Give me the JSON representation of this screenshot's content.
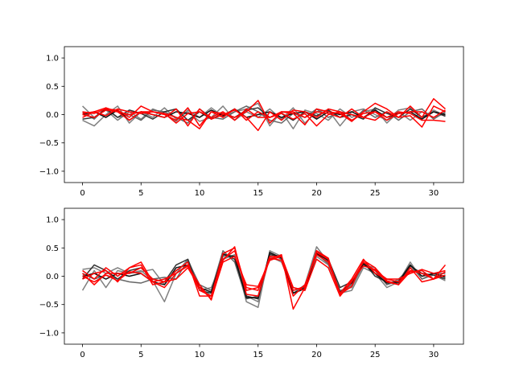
{
  "chart_data": [
    {
      "type": "line",
      "xlim": [
        -1.55,
        32.55
      ],
      "ylim": [
        -1.2,
        1.2
      ],
      "xticks": [
        0,
        5,
        10,
        15,
        20,
        25,
        30
      ],
      "xtick_labels": [
        "0",
        "5",
        "10",
        "15",
        "20",
        "25",
        "30"
      ],
      "yticks": [
        1.0,
        0.5,
        0.0,
        -0.5,
        -1.0
      ],
      "ytick_labels": [
        "1.0",
        "0.5",
        "0.0",
        "−0.5",
        "−1.0"
      ],
      "grid": false,
      "legend": "none",
      "x": [
        0,
        1,
        2,
        3,
        4,
        5,
        6,
        7,
        8,
        9,
        10,
        11,
        12,
        13,
        14,
        15,
        16,
        17,
        18,
        19,
        20,
        21,
        22,
        23,
        24,
        25,
        26,
        27,
        28,
        29,
        30,
        31
      ],
      "series": [
        {
          "color": "#808080",
          "values": [
            0.15,
            -0.05,
            0.08,
            -0.1,
            0.05,
            -0.08,
            0.1,
            0.02,
            -0.12,
            0.08,
            -0.05,
            0.12,
            -0.03,
            0.05,
            0.1,
            0.2,
            -0.2,
            0.05,
            -0.25,
            0.08,
            0.02,
            -0.1,
            0.1,
            -0.05,
            0.05,
            0.1,
            -0.15,
            0.05,
            -0.1,
            0.05,
            -0.05,
            0.02
          ]
        },
        {
          "color": "#808080",
          "values": [
            -0.1,
            -0.2,
            0.0,
            0.15,
            -0.15,
            0.05,
            -0.05,
            0.12,
            -0.08,
            0.05,
            -0.12,
            -0.05,
            0.15,
            -0.1,
            0.05,
            -0.05,
            0.1,
            -0.08,
            0.12,
            -0.15,
            0.05,
            0.08,
            -0.2,
            0.05,
            0.1,
            0.0,
            -0.1,
            0.08,
            0.12,
            -0.05,
            0.08,
            -0.02
          ]
        },
        {
          "color": "#666666",
          "values": [
            0.05,
            -0.08,
            0.12,
            -0.05,
            0.0,
            -0.1,
            0.08,
            0.05,
            -0.05,
            -0.15,
            0.1,
            -0.05,
            -0.08,
            0.05,
            0.15,
            0.05,
            -0.1,
            -0.15,
            0.02,
            -0.05,
            0.1,
            -0.05,
            0.05,
            -0.12,
            0.08,
            -0.05,
            0.05,
            -0.1,
            0.05,
            0.1,
            -0.08,
            0.05
          ]
        },
        {
          "color": "#333333",
          "values": [
            -0.08,
            -0.05,
            0.1,
            -0.05,
            0.08,
            0.02,
            -0.08,
            0.05,
            0.1,
            -0.1,
            0.05,
            -0.08,
            0.02,
            -0.05,
            0.08,
            0.12,
            -0.05,
            0.02,
            -0.1,
            0.05,
            -0.02,
            0.08,
            -0.05,
            0.0,
            -0.08,
            0.12,
            0.02,
            -0.05,
            0.1,
            -0.05,
            0.05,
            -0.03
          ]
        },
        {
          "color": "#111111",
          "values": [
            0.0,
            0.05,
            -0.05,
            0.08,
            -0.1,
            0.05,
            0.0,
            -0.05,
            0.05,
            0.02,
            -0.05,
            0.08,
            -0.02,
            0.1,
            -0.05,
            0.0,
            0.05,
            -0.05,
            0.02,
            0.05,
            -0.08,
            0.05,
            0.0,
            0.05,
            -0.05,
            0.08,
            -0.05,
            0.02,
            0.05,
            -0.08,
            0.05,
            0.0
          ]
        },
        {
          "color": "#ff0000",
          "values": [
            0.05,
            0.02,
            0.1,
            0.08,
            -0.05,
            0.15,
            0.05,
            0.0,
            -0.1,
            0.12,
            -0.2,
            0.05,
            0.02,
            -0.05,
            0.05,
            0.25,
            -0.15,
            0.05,
            0.02,
            -0.18,
            0.1,
            0.05,
            0.02,
            -0.12,
            0.05,
            0.2,
            0.1,
            -0.05,
            0.15,
            -0.05,
            0.28,
            0.1
          ]
        },
        {
          "color": "#ff0000",
          "values": [
            -0.05,
            0.05,
            0.12,
            0.05,
            0.0,
            0.05,
            0.0,
            -0.05,
            0.1,
            -0.2,
            0.1,
            -0.08,
            0.0,
            0.08,
            -0.05,
            -0.28,
            0.05,
            -0.1,
            0.08,
            0.05,
            -0.05,
            0.1,
            0.05,
            0.0,
            -0.05,
            0.05,
            -0.1,
            0.02,
            0.05,
            0.05,
            -0.05,
            0.08
          ]
        },
        {
          "color": "#ff0000",
          "values": [
            0.0,
            -0.05,
            0.08,
            0.05,
            -0.1,
            0.05,
            0.05,
            0.02,
            -0.05,
            -0.1,
            -0.25,
            0.05,
            -0.05,
            0.1,
            -0.1,
            0.05,
            -0.05,
            0.02,
            -0.08,
            0.02,
            -0.2,
            0.0,
            0.05,
            -0.1,
            0.02,
            0.05,
            -0.05,
            0.05,
            0.02,
            -0.1,
            -0.1,
            -0.12
          ]
        },
        {
          "color": "#ff0000",
          "values": [
            0.02,
            0.05,
            -0.02,
            0.1,
            0.05,
            0.02,
            0.05,
            0.02,
            -0.15,
            0.02,
            0.05,
            -0.05,
            0.05,
            -0.1,
            0.1,
            -0.05,
            -0.05,
            0.05,
            0.05,
            -0.05,
            0.05,
            0.02,
            -0.05,
            0.1,
            -0.05,
            -0.1,
            0.05,
            -0.05,
            -0.02,
            -0.22,
            0.15,
            0.05
          ]
        }
      ]
    },
    {
      "type": "line",
      "xlim": [
        -1.55,
        32.55
      ],
      "ylim": [
        -1.2,
        1.2
      ],
      "xticks": [
        0,
        5,
        10,
        15,
        20,
        25,
        30
      ],
      "xtick_labels": [
        "0",
        "5",
        "10",
        "15",
        "20",
        "25",
        "30"
      ],
      "yticks": [
        1.0,
        0.5,
        0.0,
        -0.5,
        -1.0
      ],
      "ytick_labels": [
        "1.0",
        "0.5",
        "0.0",
        "−0.5",
        "−1.0"
      ],
      "grid": false,
      "legend": "none",
      "x": [
        0,
        1,
        2,
        3,
        4,
        5,
        6,
        7,
        8,
        9,
        10,
        11,
        12,
        13,
        14,
        15,
        16,
        17,
        18,
        19,
        20,
        21,
        22,
        23,
        24,
        25,
        26,
        27,
        28,
        29,
        30,
        31
      ],
      "series": [
        {
          "color": "#808080",
          "values": [
            -0.25,
            0.1,
            -0.2,
            0.1,
            0.05,
            0.1,
            -0.08,
            -0.45,
            0.05,
            0.3,
            -0.2,
            -0.35,
            0.35,
            0.35,
            -0.45,
            -0.55,
            0.45,
            0.35,
            -0.3,
            -0.15,
            0.52,
            0.25,
            -0.3,
            -0.25,
            0.15,
            0.05,
            -0.2,
            -0.1,
            0.25,
            -0.05,
            0.02,
            -0.08
          ]
        },
        {
          "color": "#808080",
          "values": [
            0.12,
            0.15,
            0.05,
            0.15,
            0.05,
            0.08,
            0.12,
            -0.15,
            0.1,
            0.25,
            -0.25,
            -0.2,
            0.3,
            0.38,
            -0.35,
            -0.45,
            0.35,
            0.25,
            -0.25,
            -0.2,
            0.35,
            0.2,
            -0.25,
            -0.2,
            0.2,
            0.15,
            -0.15,
            -0.05,
            0.15,
            0.0,
            0.05,
            0.0
          ]
        },
        {
          "color": "#666666",
          "values": [
            0.05,
            -0.05,
            0.02,
            -0.05,
            -0.1,
            -0.12,
            -0.05,
            -0.02,
            -0.05,
            0.28,
            -0.15,
            -0.25,
            0.45,
            0.25,
            -0.4,
            -0.35,
            0.4,
            0.3,
            -0.2,
            -0.25,
            0.4,
            0.22,
            -0.3,
            -0.15,
            0.2,
            0.1,
            -0.15,
            -0.08,
            0.2,
            -0.05,
            0.05,
            0.05
          ]
        },
        {
          "color": "#333333",
          "values": [
            -0.05,
            0.2,
            0.1,
            -0.05,
            0.1,
            0.15,
            -0.05,
            -0.1,
            0.2,
            0.3,
            -0.25,
            -0.3,
            0.4,
            0.3,
            -0.35,
            -0.4,
            0.38,
            0.35,
            -0.3,
            -0.2,
            0.45,
            0.3,
            -0.2,
            -0.1,
            0.25,
            0.0,
            -0.1,
            -0.12,
            0.18,
            0.05,
            0.02,
            -0.05
          ]
        },
        {
          "color": "#111111",
          "values": [
            0.0,
            0.05,
            -0.05,
            0.05,
            0.0,
            0.05,
            -0.1,
            -0.15,
            0.15,
            0.2,
            -0.2,
            -0.28,
            0.38,
            0.35,
            -0.38,
            -0.38,
            0.42,
            0.32,
            -0.3,
            -0.22,
            0.4,
            0.28,
            -0.28,
            -0.12,
            0.22,
            0.05,
            -0.12,
            -0.1,
            0.2,
            0.0,
            0.05,
            -0.02
          ]
        },
        {
          "color": "#ff0000",
          "values": [
            0.1,
            -0.05,
            0.15,
            0.0,
            0.15,
            0.25,
            -0.1,
            -0.05,
            0.05,
            0.2,
            -0.25,
            -0.35,
            0.3,
            0.45,
            -0.2,
            -0.25,
            0.35,
            0.35,
            -0.25,
            -0.18,
            0.42,
            0.3,
            -0.3,
            -0.05,
            0.3,
            0.05,
            -0.05,
            -0.1,
            0.1,
            0.05,
            -0.05,
            0.2
          ]
        },
        {
          "color": "#ff0000",
          "values": [
            -0.05,
            0.05,
            0.1,
            -0.1,
            0.15,
            0.2,
            -0.15,
            -0.1,
            0.1,
            0.25,
            -0.35,
            -0.35,
            0.4,
            0.5,
            -0.25,
            -0.2,
            0.3,
            0.38,
            -0.58,
            -0.2,
            0.45,
            0.32,
            -0.35,
            -0.1,
            0.25,
            0.1,
            -0.05,
            -0.05,
            0.05,
            0.12,
            0.05,
            0.1
          ]
        },
        {
          "color": "#ff0000",
          "values": [
            0.05,
            -0.15,
            0.05,
            0.05,
            0.05,
            0.15,
            -0.05,
            -0.1,
            -0.05,
            0.15,
            -0.2,
            -0.4,
            0.25,
            0.35,
            -0.15,
            -0.18,
            0.28,
            0.35,
            -0.2,
            -0.25,
            0.3,
            0.15,
            -0.35,
            -0.08,
            0.18,
            0.12,
            -0.1,
            -0.15,
            0.08,
            0.1,
            -0.05,
            0.02
          ]
        },
        {
          "color": "#ff0000",
          "values": [
            0.0,
            -0.1,
            0.02,
            -0.08,
            0.08,
            0.05,
            -0.1,
            -0.2,
            0.05,
            0.18,
            -0.15,
            -0.42,
            0.28,
            0.52,
            -0.32,
            -0.35,
            0.32,
            0.28,
            -0.35,
            -0.15,
            0.38,
            0.25,
            -0.32,
            -0.18,
            0.28,
            0.15,
            -0.08,
            -0.15,
            0.15,
            -0.1,
            -0.05,
            0.08
          ]
        }
      ]
    }
  ]
}
